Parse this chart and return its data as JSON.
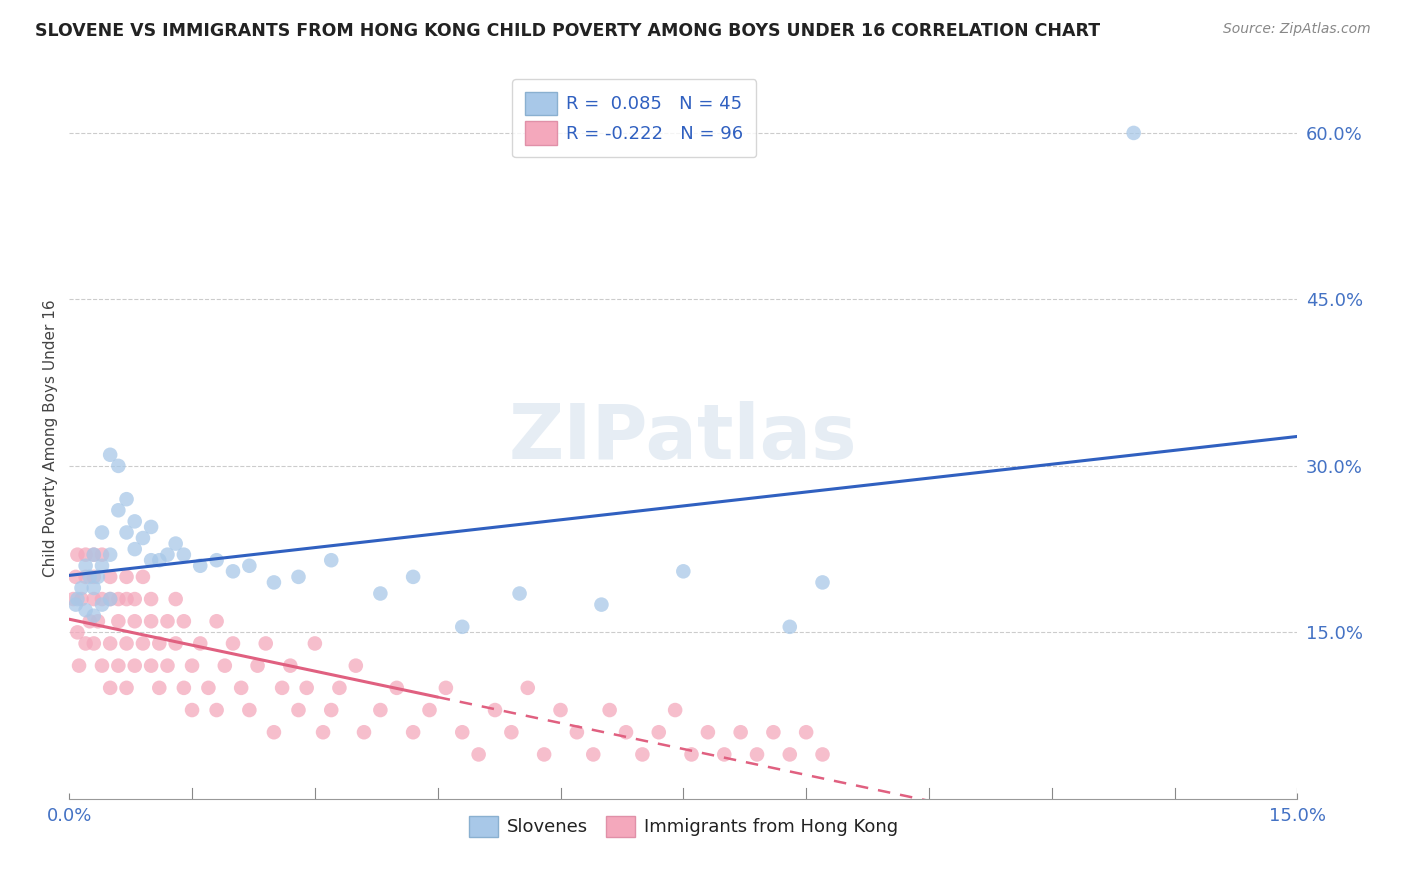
{
  "title": "SLOVENE VS IMMIGRANTS FROM HONG KONG CHILD POVERTY AMONG BOYS UNDER 16 CORRELATION CHART",
  "source": "Source: ZipAtlas.com",
  "ylabel": "Child Poverty Among Boys Under 16",
  "right_yticks": [
    0.0,
    0.15,
    0.3,
    0.45,
    0.6
  ],
  "right_yticklabels": [
    "",
    "15.0%",
    "30.0%",
    "45.0%",
    "60.0%"
  ],
  "xlim": [
    0.0,
    0.15
  ],
  "ylim": [
    0.0,
    0.65
  ],
  "watermark": "ZIPatlas",
  "blue_color": "#a8c8e8",
  "pink_color": "#f4a8bc",
  "blue_line_color": "#3060c0",
  "pink_line_color": "#e06080",
  "slovene_x": [
    0.0008,
    0.001,
    0.0015,
    0.002,
    0.002,
    0.0025,
    0.003,
    0.003,
    0.003,
    0.0035,
    0.004,
    0.004,
    0.004,
    0.005,
    0.005,
    0.005,
    0.006,
    0.006,
    0.007,
    0.007,
    0.008,
    0.008,
    0.009,
    0.01,
    0.01,
    0.011,
    0.012,
    0.013,
    0.014,
    0.016,
    0.018,
    0.02,
    0.022,
    0.025,
    0.028,
    0.032,
    0.038,
    0.042,
    0.048,
    0.055,
    0.065,
    0.075,
    0.088,
    0.092,
    0.13
  ],
  "slovene_y": [
    0.175,
    0.18,
    0.19,
    0.17,
    0.21,
    0.2,
    0.165,
    0.19,
    0.22,
    0.2,
    0.175,
    0.21,
    0.24,
    0.18,
    0.22,
    0.31,
    0.3,
    0.26,
    0.24,
    0.27,
    0.225,
    0.25,
    0.235,
    0.215,
    0.245,
    0.215,
    0.22,
    0.23,
    0.22,
    0.21,
    0.215,
    0.205,
    0.21,
    0.195,
    0.2,
    0.215,
    0.185,
    0.2,
    0.155,
    0.185,
    0.175,
    0.205,
    0.155,
    0.195,
    0.6
  ],
  "hk_x": [
    0.0005,
    0.0008,
    0.001,
    0.001,
    0.0012,
    0.0015,
    0.002,
    0.002,
    0.002,
    0.0025,
    0.003,
    0.003,
    0.003,
    0.003,
    0.0035,
    0.004,
    0.004,
    0.004,
    0.005,
    0.005,
    0.005,
    0.005,
    0.006,
    0.006,
    0.006,
    0.007,
    0.007,
    0.007,
    0.007,
    0.008,
    0.008,
    0.008,
    0.009,
    0.009,
    0.01,
    0.01,
    0.01,
    0.011,
    0.011,
    0.012,
    0.012,
    0.013,
    0.013,
    0.014,
    0.014,
    0.015,
    0.015,
    0.016,
    0.017,
    0.018,
    0.018,
    0.019,
    0.02,
    0.021,
    0.022,
    0.023,
    0.024,
    0.025,
    0.026,
    0.027,
    0.028,
    0.029,
    0.03,
    0.031,
    0.032,
    0.033,
    0.035,
    0.036,
    0.038,
    0.04,
    0.042,
    0.044,
    0.046,
    0.048,
    0.05,
    0.052,
    0.054,
    0.056,
    0.058,
    0.06,
    0.062,
    0.064,
    0.066,
    0.068,
    0.07,
    0.072,
    0.074,
    0.076,
    0.078,
    0.08,
    0.082,
    0.084,
    0.086,
    0.088,
    0.09,
    0.092
  ],
  "hk_y": [
    0.18,
    0.2,
    0.15,
    0.22,
    0.12,
    0.18,
    0.14,
    0.2,
    0.22,
    0.16,
    0.18,
    0.14,
    0.2,
    0.22,
    0.16,
    0.12,
    0.18,
    0.22,
    0.14,
    0.18,
    0.2,
    0.1,
    0.16,
    0.18,
    0.12,
    0.14,
    0.18,
    0.2,
    0.1,
    0.16,
    0.12,
    0.18,
    0.14,
    0.2,
    0.12,
    0.16,
    0.18,
    0.14,
    0.1,
    0.16,
    0.12,
    0.14,
    0.18,
    0.1,
    0.16,
    0.12,
    0.08,
    0.14,
    0.1,
    0.16,
    0.08,
    0.12,
    0.14,
    0.1,
    0.08,
    0.12,
    0.14,
    0.06,
    0.1,
    0.12,
    0.08,
    0.1,
    0.14,
    0.06,
    0.08,
    0.1,
    0.12,
    0.06,
    0.08,
    0.1,
    0.06,
    0.08,
    0.1,
    0.06,
    0.04,
    0.08,
    0.06,
    0.1,
    0.04,
    0.08,
    0.06,
    0.04,
    0.08,
    0.06,
    0.04,
    0.06,
    0.08,
    0.04,
    0.06,
    0.04,
    0.06,
    0.04,
    0.06,
    0.04,
    0.06,
    0.04
  ]
}
